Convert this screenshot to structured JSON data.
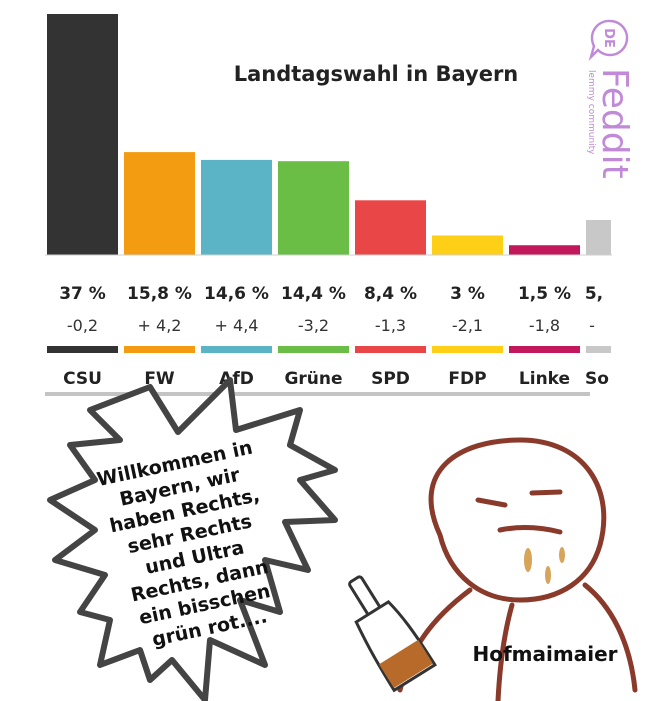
{
  "chart_data": {
    "type": "bar",
    "title": "Landtagswahl in Bayern",
    "categories": [
      "CSU",
      "FW",
      "AfD",
      "Grüne",
      "SPD",
      "FDP",
      "Linke",
      "So"
    ],
    "values": [
      37,
      15.8,
      14.6,
      14.4,
      8.4,
      3,
      1.5,
      5
    ],
    "value_labels": [
      "37 %",
      "15,8 %",
      "14,6 %",
      "14,4 %",
      "8,4 %",
      "3 %",
      "1,5 %",
      "5,"
    ],
    "changes": [
      "-0,2",
      "+ 4,2",
      "+ 4,4",
      "-3,2",
      "-1,3",
      "-2,1",
      "-1,8",
      "-"
    ],
    "party_labels": [
      "CSU",
      "FW",
      "AfD",
      "Grüne",
      "SPD",
      "FDP",
      "Linke",
      "So"
    ],
    "colors": [
      "#333333",
      "#f39c12",
      "#5bb3c6",
      "#6abd45",
      "#e94747",
      "#fdd017",
      "#c2185b",
      "#c8c8c8"
    ],
    "ylim": [
      0,
      37
    ]
  },
  "meme": {
    "speech": [
      "Willkommen in",
      "Bayern, wir",
      "haben Rechts,",
      "sehr Rechts",
      "und Ultra",
      "Rechts, dann",
      "ein bisschen",
      "grün rot...."
    ],
    "caption": "Hofmaimaier"
  },
  "logo": {
    "badge": "DE",
    "name": "Feddit",
    "subtitle": "lemmy community",
    "color": "#c08ad8"
  }
}
